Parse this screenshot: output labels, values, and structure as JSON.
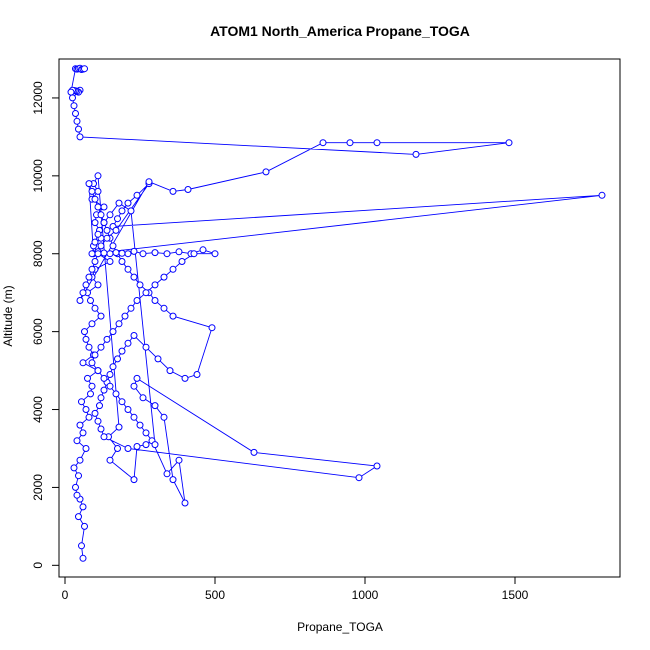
{
  "chart_data": {
    "type": "line",
    "title": "ATOM1 North_America Propane_TOGA",
    "xlabel": "Propane_TOGA",
    "ylabel": "Altitude (m)",
    "xlim": [
      -20,
      1850
    ],
    "ylim": [
      -300,
      13000
    ],
    "xticks": [
      0,
      500,
      1000,
      1500
    ],
    "yticks": [
      0,
      2000,
      4000,
      6000,
      8000,
      10000,
      12000
    ],
    "grid": false,
    "legend": "none",
    "series_color": "#0000ff",
    "series": [
      {
        "x": [
          60,
          55,
          65,
          45,
          60,
          50,
          40,
          35,
          45,
          30,
          50,
          70,
          40,
          60,
          50,
          80,
          70,
          55,
          85,
          90,
          75,
          110,
          60,
          95,
          80,
          70,
          65,
          90,
          120,
          100,
          85,
          75,
          110,
          90,
          100,
          150,
          110,
          95,
          120,
          115,
          100,
          105,
          130,
          90,
          110,
          95,
          110,
          180,
          145,
          175,
          150,
          230,
          240,
          270,
          290,
          340,
          380,
          400,
          360,
          330,
          300,
          260,
          230,
          240,
          630,
          1040,
          980,
          210,
          130,
          120,
          110,
          100,
          115,
          120,
          130,
          140,
          150,
          160,
          175,
          190,
          210,
          230,
          270,
          310,
          350,
          400,
          440,
          490,
          360,
          330,
          300,
          280,
          250,
          230,
          210,
          190,
          175,
          160,
          150,
          140,
          130,
          120,
          110,
          100,
          90,
          80,
          95,
          110,
          130,
          150,
          170,
          190,
          210,
          230,
          260,
          300,
          340,
          380,
          420,
          460,
          500,
          430,
          390,
          360,
          330,
          300,
          270,
          240,
          220,
          200,
          180,
          160,
          140,
          120,
          100,
          90,
          110,
          130,
          150,
          170,
          190,
          210,
          230,
          250,
          270,
          300,
          220,
          180,
          150,
          130,
          110,
          100,
          90,
          1790,
          160,
          175,
          190,
          210,
          240,
          280,
          170,
          140,
          120,
          110,
          100,
          90,
          80,
          70,
          60,
          50,
          280,
          360,
          410,
          670,
          860,
          950,
          1040,
          1480,
          1170,
          50,
          45,
          40,
          35,
          30,
          25,
          50,
          45,
          40,
          35,
          30,
          25,
          20,
          35,
          40,
          45,
          50,
          55,
          60,
          65
        ],
        "y": [
          180,
          500,
          1000,
          1250,
          1500,
          1700,
          1800,
          2000,
          2300,
          2500,
          2700,
          3000,
          3200,
          3400,
          3600,
          3800,
          4000,
          4200,
          4400,
          4600,
          4800,
          5000,
          5200,
          5400,
          5600,
          5800,
          6000,
          6200,
          6400,
          6600,
          6800,
          7000,
          7200,
          7400,
          7600,
          7800,
          8000,
          8200,
          8400,
          8600,
          8800,
          9000,
          9200,
          9400,
          9600,
          9800,
          10000,
          3550,
          3300,
          3000,
          2700,
          2200,
          3050,
          3100,
          3200,
          2350,
          2700,
          1600,
          2200,
          3800,
          4100,
          4300,
          4600,
          4800,
          2900,
          2550,
          2250,
          3000,
          3300,
          3500,
          3700,
          3900,
          4100,
          4300,
          4500,
          4700,
          4900,
          5100,
          5300,
          5500,
          5700,
          5900,
          5600,
          5300,
          5000,
          4800,
          4900,
          6100,
          6400,
          6600,
          6800,
          7000,
          7200,
          7400,
          7600,
          7800,
          8000,
          8200,
          8400,
          8600,
          8800,
          9000,
          9200,
          9400,
          9600,
          9800,
          8000,
          8050,
          8020,
          8000,
          8030,
          8010,
          8000,
          8060,
          8000,
          8030,
          8000,
          8050,
          8000,
          8100,
          8000,
          8000,
          7800,
          7600,
          7400,
          7200,
          7000,
          6800,
          6600,
          6400,
          6200,
          6000,
          5800,
          5600,
          5400,
          5200,
          5000,
          4800,
          4600,
          4400,
          4200,
          4000,
          3800,
          3600,
          3400,
          3100,
          9100,
          9300,
          9000,
          8800,
          8500,
          8300,
          8000,
          9500,
          8700,
          8900,
          9100,
          9300,
          9500,
          9800,
          8600,
          8400,
          8200,
          8000,
          7800,
          7600,
          7400,
          7200,
          7000,
          6800,
          9850,
          9600,
          9650,
          10100,
          10850,
          10850,
          10850,
          10850,
          10550,
          11000,
          11200,
          11400,
          11600,
          11800,
          12000,
          12200,
          12150,
          12170,
          12180,
          12190,
          12200,
          12150,
          12750,
          12740,
          12750,
          12760,
          12730,
          12740,
          12750
        ]
      }
    ]
  }
}
